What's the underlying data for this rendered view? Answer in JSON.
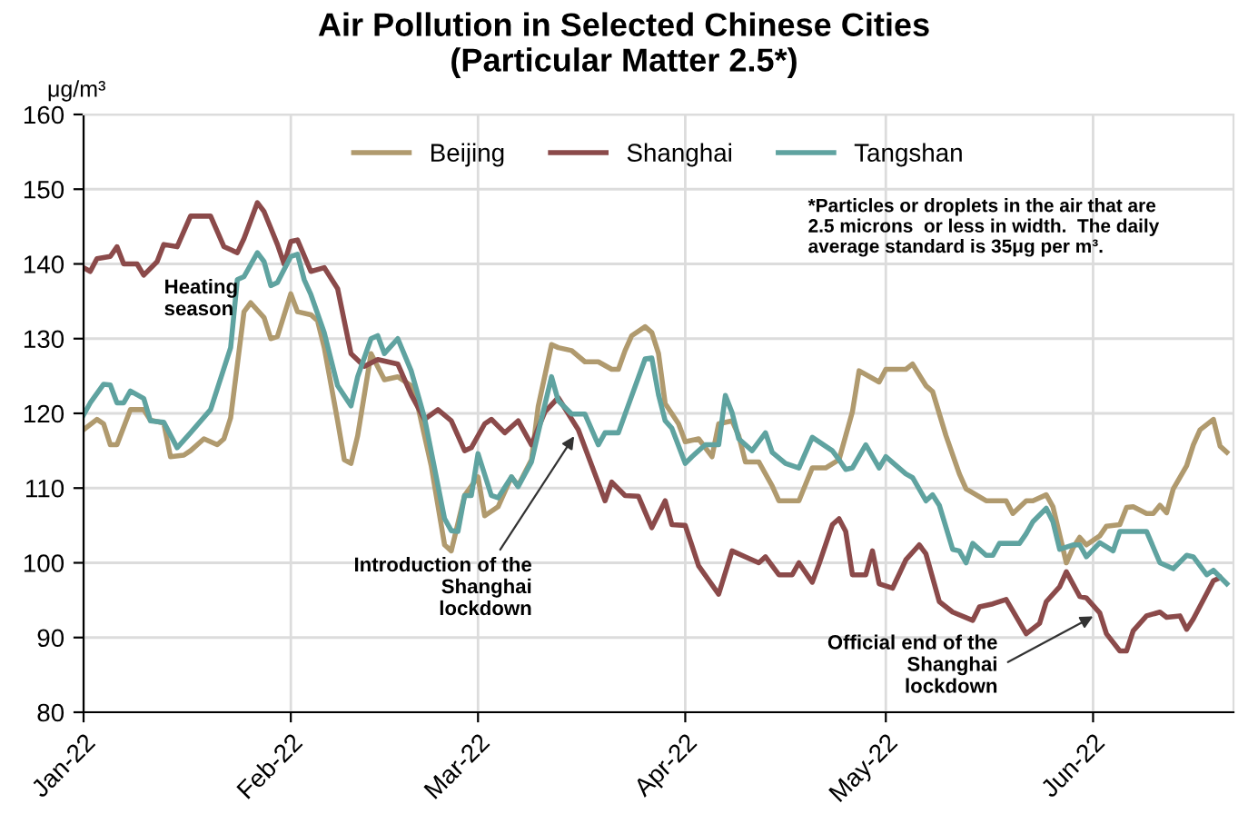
{
  "chart_data": {
    "type": "line",
    "title": "Air Pollution in Selected Chinese Cities\n(Particular Matter 2.5*)",
    "ylabel": "μg/m³",
    "xlim": [
      "2022-01-01",
      "2022-06-22"
    ],
    "xticks": [
      {
        "value": "2022-01-01",
        "label": "Jan-22"
      },
      {
        "value": "2022-02-01",
        "label": "Feb-22"
      },
      {
        "value": "2022-03-01",
        "label": "Mar-22"
      },
      {
        "value": "2022-04-01",
        "label": "Apr-22"
      },
      {
        "value": "2022-05-01",
        "label": "May-22"
      },
      {
        "value": "2022-06-01",
        "label": "Jun-22"
      }
    ],
    "ylim": [
      80,
      160
    ],
    "yticks": [
      80,
      90,
      100,
      110,
      120,
      130,
      140,
      150,
      160
    ],
    "grid": true,
    "legend": "top",
    "marker": "none",
    "line_style": "solid",
    "annotations": [
      "Heating\nseason",
      {
        "text": "Introduction of the\nShanghai\nlockdown",
        "x": "2022-03-16",
        "y": 117.8
      },
      {
        "text": "Official end of the\nShanghai\nlockdown",
        "x": "2022-06-02",
        "y": 93.3
      },
      "*Particles or droplets in the air that are\n2.5 microns  or less in width.  The daily\naverage standard is 35μg per m³."
    ],
    "series": [
      {
        "name": "Beijing",
        "color": "#b09a6e",
        "x": [
          "2022-01-01",
          "2022-01-03",
          "2022-01-04",
          "2022-01-05",
          "2022-01-06",
          "2022-01-08",
          "2022-01-10",
          "2022-01-11",
          "2022-01-13",
          "2022-01-14",
          "2022-01-16",
          "2022-01-17",
          "2022-01-19",
          "2022-01-21",
          "2022-01-22",
          "2022-01-23",
          "2022-01-25",
          "2022-01-26",
          "2022-01-28",
          "2022-01-29",
          "2022-01-30",
          "2022-02-01",
          "2022-02-02",
          "2022-02-04",
          "2022-02-05",
          "2022-02-06",
          "2022-02-08",
          "2022-02-09",
          "2022-02-10",
          "2022-02-11",
          "2022-02-13",
          "2022-02-15",
          "2022-02-17",
          "2022-02-19",
          "2022-02-20",
          "2022-02-22",
          "2022-02-24",
          "2022-02-25",
          "2022-02-27",
          "2022-03-01",
          "2022-03-02",
          "2022-03-04",
          "2022-03-06",
          "2022-03-07",
          "2022-03-09",
          "2022-03-10",
          "2022-03-12",
          "2022-03-13",
          "2022-03-15",
          "2022-03-17",
          "2022-03-19",
          "2022-03-21",
          "2022-03-22",
          "2022-03-23",
          "2022-03-24",
          "2022-03-26",
          "2022-03-27",
          "2022-03-28",
          "2022-03-29",
          "2022-03-31",
          "2022-04-01",
          "2022-04-03",
          "2022-04-05",
          "2022-04-06",
          "2022-04-08",
          "2022-04-09",
          "2022-04-10",
          "2022-04-12",
          "2022-04-14",
          "2022-04-15",
          "2022-04-18",
          "2022-04-20",
          "2022-04-22",
          "2022-04-24",
          "2022-04-26",
          "2022-04-27",
          "2022-04-30",
          "2022-05-01",
          "2022-05-04",
          "2022-05-05",
          "2022-05-07",
          "2022-05-08",
          "2022-05-10",
          "2022-05-12",
          "2022-05-13",
          "2022-05-16",
          "2022-05-19",
          "2022-05-20",
          "2022-05-22",
          "2022-05-23",
          "2022-05-25",
          "2022-05-26",
          "2022-05-28",
          "2022-05-29",
          "2022-05-30",
          "2022-05-31",
          "2022-06-02",
          "2022-06-03",
          "2022-06-05",
          "2022-06-06",
          "2022-06-07",
          "2022-06-09",
          "2022-06-10",
          "2022-06-11",
          "2022-06-12",
          "2022-06-13",
          "2022-06-15",
          "2022-06-16",
          "2022-06-17",
          "2022-06-19",
          "2022-06-20",
          "2022-06-21"
        ],
        "values": [
          117.8,
          119.2,
          118.6,
          115.8,
          115.8,
          120.5,
          120.5,
          119.1,
          118.7,
          114.2,
          114.4,
          115,
          116.6,
          115.8,
          116.6,
          119.4,
          133.6,
          134.8,
          132.8,
          130,
          130.3,
          136,
          133.6,
          133.2,
          132.4,
          128.8,
          119,
          113.8,
          113.3,
          117,
          128,
          124.5,
          124.9,
          123.7,
          121,
          113,
          102.4,
          101.6,
          109,
          111.5,
          106.3,
          107.5,
          111.5,
          110.3,
          113.8,
          120.9,
          129.2,
          128.8,
          128.4,
          126.9,
          126.9,
          125.9,
          125.9,
          128.4,
          130.4,
          131.6,
          130.8,
          128,
          121.3,
          118.6,
          116.2,
          116.6,
          114.2,
          118.6,
          119,
          117,
          113.5,
          113.5,
          110.3,
          108.3,
          108.3,
          112.7,
          112.7,
          113.8,
          120.2,
          125.7,
          124.2,
          125.9,
          125.9,
          126.6,
          123.7,
          122.9,
          117,
          111.9,
          109.9,
          108.3,
          108.3,
          106.6,
          108.3,
          108.3,
          109.1,
          107.5,
          100,
          102,
          103.4,
          102.4,
          103.6,
          104.9,
          105.1,
          107.4,
          107.5,
          106.6,
          106.6,
          107.7,
          106.7,
          109.9,
          113,
          115.8,
          117.8,
          119.2,
          115.6,
          114.8
        ]
      },
      {
        "name": "Shanghai",
        "color": "#8b4a4a",
        "x": [
          "2022-01-01",
          "2022-01-02",
          "2022-01-03",
          "2022-01-05",
          "2022-01-06",
          "2022-01-07",
          "2022-01-09",
          "2022-01-10",
          "2022-01-12",
          "2022-01-13",
          "2022-01-15",
          "2022-01-17",
          "2022-01-20",
          "2022-01-22",
          "2022-01-24",
          "2022-01-25",
          "2022-01-27",
          "2022-01-28",
          "2022-01-30",
          "2022-01-31",
          "2022-02-01",
          "2022-02-02",
          "2022-02-04",
          "2022-02-06",
          "2022-02-08",
          "2022-02-10",
          "2022-02-12",
          "2022-02-14",
          "2022-02-17",
          "2022-02-19",
          "2022-02-21",
          "2022-02-23",
          "2022-02-25",
          "2022-02-27",
          "2022-02-28",
          "2022-03-02",
          "2022-03-03",
          "2022-03-05",
          "2022-03-07",
          "2022-03-09",
          "2022-03-11",
          "2022-03-13",
          "2022-03-16",
          "2022-03-20",
          "2022-03-21",
          "2022-03-23",
          "2022-03-25",
          "2022-03-27",
          "2022-03-29",
          "2022-03-30",
          "2022-04-01",
          "2022-04-03",
          "2022-04-06",
          "2022-04-08",
          "2022-04-10",
          "2022-04-12",
          "2022-04-13",
          "2022-04-15",
          "2022-04-17",
          "2022-04-18",
          "2022-04-20",
          "2022-04-21",
          "2022-04-23",
          "2022-04-24",
          "2022-04-25",
          "2022-04-26",
          "2022-04-28",
          "2022-04-29",
          "2022-04-30",
          "2022-05-02",
          "2022-05-04",
          "2022-05-06",
          "2022-05-07",
          "2022-05-09",
          "2022-05-11",
          "2022-05-14",
          "2022-05-15",
          "2022-05-17",
          "2022-05-19",
          "2022-05-22",
          "2022-05-24",
          "2022-05-25",
          "2022-05-27",
          "2022-05-28",
          "2022-05-30",
          "2022-05-31",
          "2022-06-02",
          "2022-06-03",
          "2022-06-05",
          "2022-06-06",
          "2022-06-07",
          "2022-06-09",
          "2022-06-11",
          "2022-06-12",
          "2022-06-14",
          "2022-06-15",
          "2022-06-16",
          "2022-06-19",
          "2022-06-20"
        ],
        "values": [
          139.5,
          139,
          140.7,
          141,
          142.3,
          140,
          140,
          138.5,
          140.3,
          142.6,
          142.3,
          146.4,
          146.4,
          142.3,
          141.5,
          143.4,
          148.2,
          147,
          142.6,
          140,
          143,
          143.2,
          139,
          139.5,
          136.7,
          128,
          126.3,
          127.2,
          126.6,
          122.5,
          119.2,
          120.5,
          119,
          115,
          115.4,
          118.6,
          119.2,
          117.4,
          119,
          115.8,
          120.2,
          122.1,
          117.8,
          108.3,
          110.8,
          109,
          108.9,
          104.7,
          108.3,
          105.1,
          105,
          99.6,
          95.8,
          101.6,
          100.8,
          100,
          100.8,
          98.4,
          98.4,
          100,
          97.4,
          99.8,
          105.1,
          105.9,
          104.2,
          98.4,
          98.4,
          101.6,
          97.2,
          96.6,
          100.4,
          102.4,
          101.2,
          94.8,
          93.4,
          92.3,
          94.1,
          94.5,
          95.1,
          90.5,
          91.9,
          94.8,
          96.8,
          98.8,
          95.5,
          95.3,
          93.3,
          90.5,
          88.2,
          88.2,
          90.9,
          92.9,
          93.4,
          92.7,
          92.9,
          91.1,
          92.5,
          97.6,
          98
        ]
      },
      {
        "name": "Tangshan",
        "color": "#5fa3a0",
        "x": [
          "2022-01-01",
          "2022-01-02",
          "2022-01-04",
          "2022-01-05",
          "2022-01-06",
          "2022-01-07",
          "2022-01-08",
          "2022-01-10",
          "2022-01-11",
          "2022-01-13",
          "2022-01-15",
          "2022-01-17",
          "2022-01-20",
          "2022-01-23",
          "2022-01-24",
          "2022-01-25",
          "2022-01-27",
          "2022-01-28",
          "2022-01-29",
          "2022-01-30",
          "2022-02-01",
          "2022-02-02",
          "2022-02-03",
          "2022-02-04",
          "2022-02-06",
          "2022-02-08",
          "2022-02-10",
          "2022-02-11",
          "2022-02-13",
          "2022-02-14",
          "2022-02-15",
          "2022-02-17",
          "2022-02-19",
          "2022-02-21",
          "2022-02-24",
          "2022-02-25",
          "2022-02-26",
          "2022-02-27",
          "2022-02-28",
          "2022-03-01",
          "2022-03-03",
          "2022-03-04",
          "2022-03-06",
          "2022-03-07",
          "2022-03-09",
          "2022-03-10",
          "2022-03-12",
          "2022-03-13",
          "2022-03-15",
          "2022-03-17",
          "2022-03-19",
          "2022-03-20",
          "2022-03-22",
          "2022-03-23",
          "2022-03-26",
          "2022-03-27",
          "2022-03-28",
          "2022-03-29",
          "2022-03-30",
          "2022-04-01",
          "2022-04-02",
          "2022-04-04",
          "2022-04-06",
          "2022-04-07",
          "2022-04-08",
          "2022-04-09",
          "2022-04-11",
          "2022-04-13",
          "2022-04-14",
          "2022-04-16",
          "2022-04-18",
          "2022-04-20",
          "2022-04-23",
          "2022-04-24",
          "2022-04-25",
          "2022-04-26",
          "2022-04-28",
          "2022-04-30",
          "2022-05-01",
          "2022-05-04",
          "2022-05-05",
          "2022-05-07",
          "2022-05-08",
          "2022-05-09",
          "2022-05-11",
          "2022-05-12",
          "2022-05-13",
          "2022-05-14",
          "2022-05-16",
          "2022-05-17",
          "2022-05-18",
          "2022-05-21",
          "2022-05-22",
          "2022-05-23",
          "2022-05-25",
          "2022-05-26",
          "2022-05-27",
          "2022-05-29",
          "2022-05-30",
          "2022-05-31",
          "2022-06-02",
          "2022-06-04",
          "2022-06-05",
          "2022-06-09",
          "2022-06-11",
          "2022-06-13",
          "2022-06-15",
          "2022-06-16",
          "2022-06-18",
          "2022-06-19",
          "2022-06-21"
        ],
        "values": [
          119.8,
          121.4,
          123.9,
          123.8,
          121.4,
          121.4,
          123,
          122,
          119,
          118.8,
          115.4,
          117.4,
          120.5,
          128.8,
          137.9,
          138.3,
          141.5,
          140.3,
          137.1,
          137.5,
          141,
          141.3,
          137.9,
          135.9,
          130.8,
          123.7,
          121,
          124.9,
          130,
          130.4,
          128,
          130,
          125.7,
          119.4,
          105.9,
          104.3,
          104.2,
          109,
          109,
          114.6,
          109,
          108.7,
          111.5,
          110.2,
          113.5,
          117.4,
          124.9,
          121.7,
          119.9,
          119.9,
          115.8,
          117.4,
          117.4,
          119.9,
          127.3,
          127.4,
          122.5,
          119,
          118,
          113.3,
          114.2,
          115.8,
          115.8,
          122.4,
          120.1,
          116.6,
          115,
          117.4,
          114.8,
          113.3,
          112.7,
          116.8,
          115,
          113.8,
          112.5,
          112.7,
          115.8,
          112.7,
          114.2,
          111.9,
          111.4,
          108.3,
          109.1,
          107.7,
          101.8,
          101.6,
          100,
          102.6,
          101,
          101,
          102.6,
          102.6,
          103.9,
          105.5,
          107.3,
          105.5,
          101.8,
          102.4,
          102.4,
          100.8,
          102.7,
          101.6,
          104.2,
          104.2,
          100,
          99.2,
          101,
          100.8,
          98.4,
          99,
          97.2
        ]
      }
    ]
  }
}
